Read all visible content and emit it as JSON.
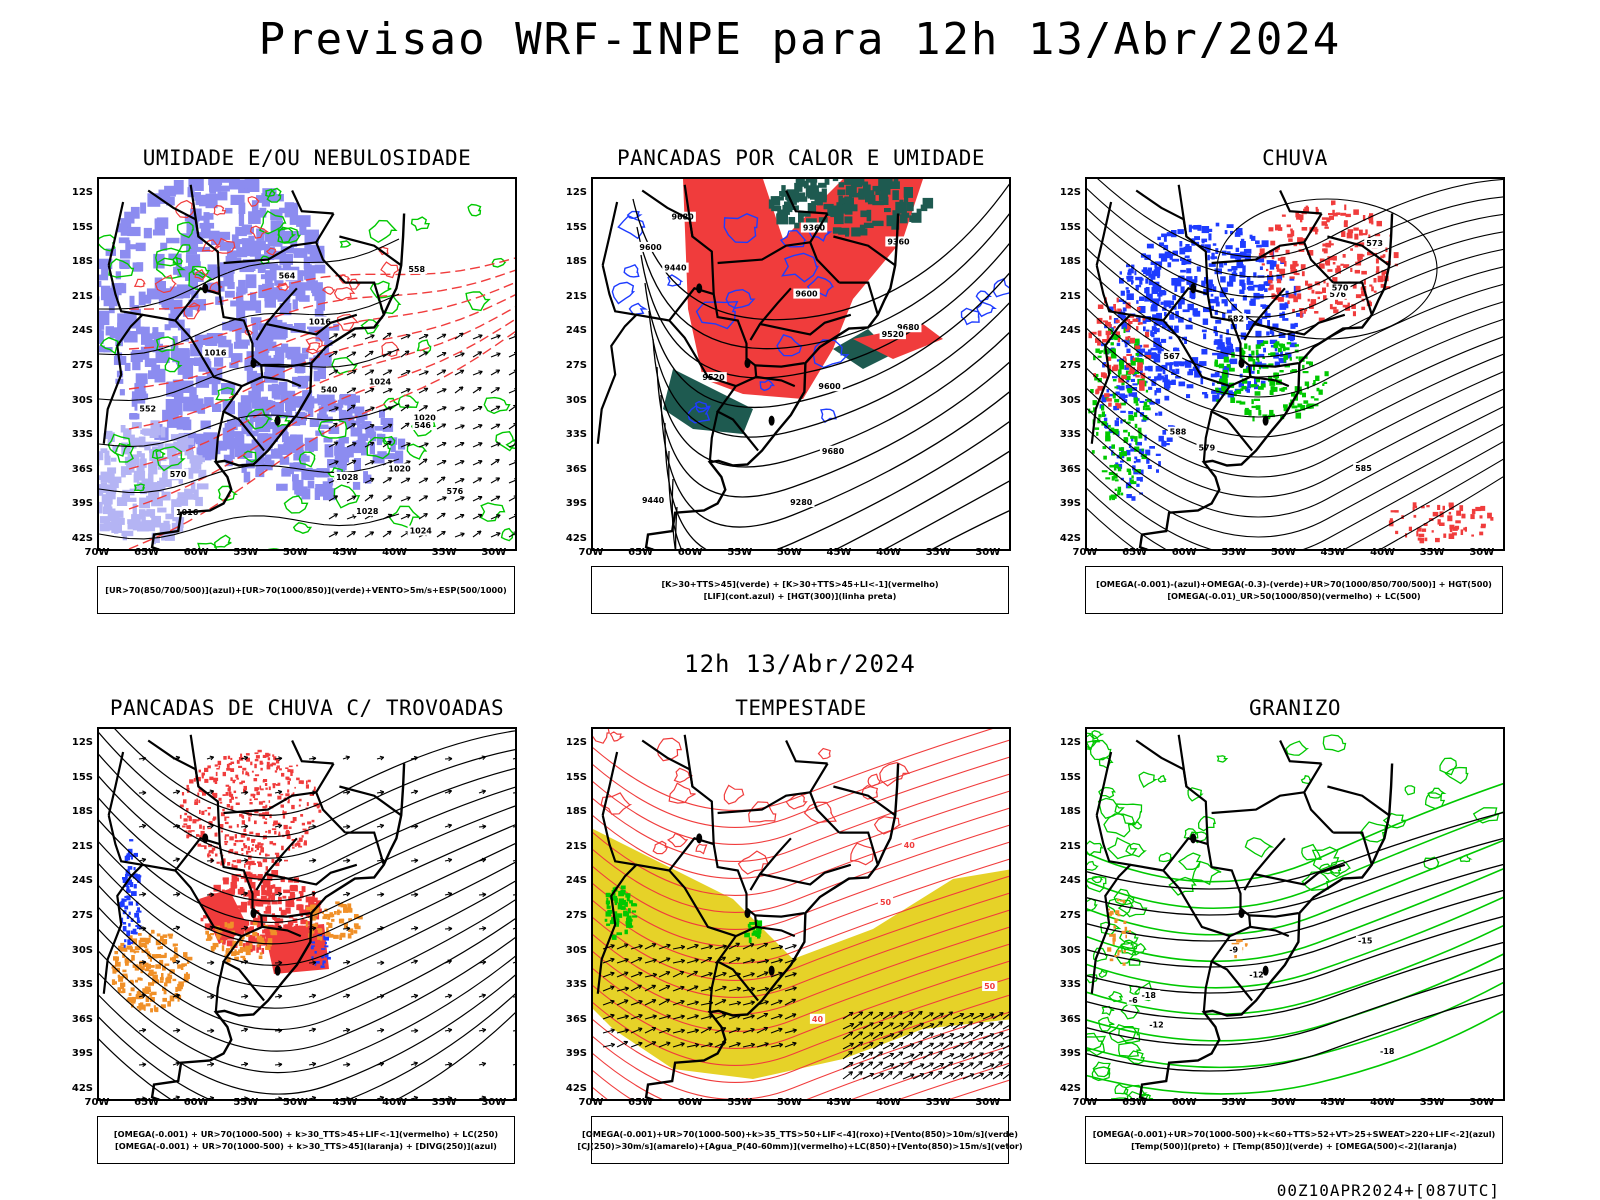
{
  "title": "Previsao WRF-INPE  para 12h 13/Abr/2024",
  "mid_title": "12h 13/Abr/2024",
  "run_id": "00Z10APR2024+[087UTC]",
  "axes": {
    "lat_labels": [
      "12S",
      "15S",
      "18S",
      "21S",
      "24S",
      "27S",
      "30S",
      "33S",
      "36S",
      "39S",
      "42S"
    ],
    "lon_labels": [
      "70W",
      "65W",
      "60W",
      "55W",
      "50W",
      "45W",
      "40W",
      "35W",
      "30W"
    ]
  },
  "colors": {
    "humidity_blue": "#8c8cf0",
    "green": "#00c800",
    "red": "#f03c3c",
    "blue": "#1e3cff",
    "dark_teal": "#1e5a50",
    "orange": "#f09028",
    "yellow": "#e6d228",
    "black": "#000000"
  },
  "panels": [
    {
      "title": "UMIDADE E/OU NEBULOSIDADE",
      "legend": [
        "[UR>70(850/700/500)](azul)+[UR>70(1000/850)](verde)+VENTO>5m/s+ESP(500/1000)"
      ],
      "contour_labels": [
        "1016",
        "1016",
        "1016",
        "1020",
        "1020",
        "1024",
        "1024",
        "1028",
        "1028",
        "576",
        "570",
        "564",
        "558",
        "552",
        "546",
        "540"
      ]
    },
    {
      "title": "PANCADAS POR CALOR E UMIDADE",
      "legend": [
        "[K>30+TTS>45](verde) + [K>30+TTS>45+LI<-1](vermelho)",
        "[LIF](cont.azul) + [HGT(300)](linha preta)"
      ],
      "contour_labels": [
        "9680",
        "9680",
        "9680",
        "9600",
        "9600",
        "9600",
        "9520",
        "9520",
        "9440",
        "9440",
        "9360",
        "9360",
        "9280"
      ]
    },
    {
      "title": "CHUVA",
      "legend": [
        "[OMEGA(-0.001)-(azul)+OMEGA(-0.3)-(verde)+UR>70(1000/850/700/500)] + HGT(500)",
        "[OMEGA(-0.01)_UR>50(1000/850)(vermelho) + LC(500)"
      ],
      "contour_labels": [
        "588",
        "585",
        "579",
        "576",
        "573",
        "570",
        "567",
        "582"
      ]
    },
    {
      "title": "PANCADAS DE CHUVA C/ TROVOADAS",
      "legend": [
        "[OMEGA(-0.001) + UR>70(1000-500) + k>30_TTS>45+LIF<-1](vermelho) + LC(250)",
        "[OMEGA(-0.001) + UR>70(1000-500) + k>30_TTS>45](laranja) + [DIVG(250)](azul)"
      ],
      "contour_labels": []
    },
    {
      "title": "TEMPESTADE",
      "legend": [
        "[OMEGA(-0.001)+UR>70(1000-500)+k>35_TTS>50+LIF<-4](roxo)+[Vento(850)>10m/s](verde)",
        "[CJ(250)>30m/s](amarelo)+[Agua_P(40-60mm)](vermelho)+LC(850)+[Vento(850)>15m/s](vetor)"
      ],
      "contour_labels": [
        "40",
        "40",
        "50",
        "50"
      ]
    },
    {
      "title": "GRANIZO",
      "legend": [
        "[OMEGA(-0.001)+UR>70(1000-500)+k<60+TTS>52+VT>25+SWEAT>220+LIF<-2](azul)",
        "[Temp(500)](preto) + [Temp(850)](verde) + [OMEGA(500)<-2](laranja)"
      ],
      "contour_labels": [
        "-12",
        "-12",
        "-15",
        "-18",
        "-9",
        "-6",
        "-18"
      ]
    }
  ]
}
